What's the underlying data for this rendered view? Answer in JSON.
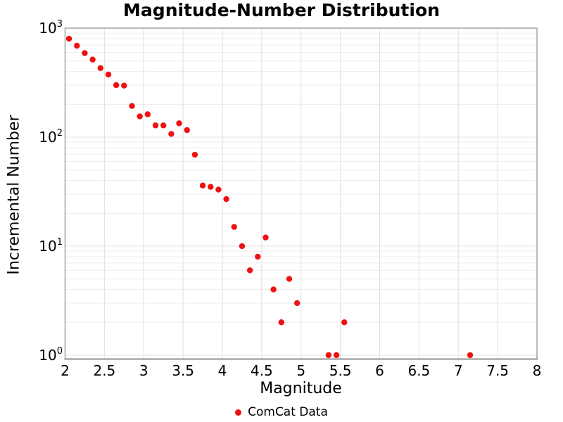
{
  "title": "Magnitude-Number Distribution",
  "axes": {
    "x_label": "Magnitude",
    "y_label": "Incremental Number",
    "x_tick_values": [
      2,
      2.5,
      3,
      3.5,
      4,
      4.5,
      5,
      5.5,
      6,
      6.5,
      7,
      7.5,
      8
    ],
    "x_tick_labels": [
      "2",
      "2.5",
      "3",
      "3.5",
      "4",
      "4.5",
      "5",
      "5.5",
      "6",
      "6.5",
      "7",
      "7.5",
      "8"
    ],
    "y_tick_base": "10",
    "y_tick_exponents": [
      0,
      1,
      2,
      3
    ]
  },
  "legend": {
    "items": [
      {
        "label": "ComCat Data",
        "marker": "circle-icon",
        "color": "#ee1111"
      }
    ]
  },
  "colors": {
    "marker": "#ee1111",
    "grid_minor": "#ececec",
    "grid_major": "#e0e0e0",
    "spine": "#a8a8a8",
    "axis_line": "#8f8f8f",
    "text": "#000000",
    "background": "#ffffff"
  },
  "chart_data": {
    "type": "scatter",
    "title": "Magnitude-Number Distribution",
    "xlabel": "Magnitude",
    "ylabel": "Incremental Number",
    "x_scale": "linear",
    "y_scale": "log",
    "xlim": [
      2,
      8
    ],
    "ylim": [
      0.92,
      1000
    ],
    "grid": true,
    "legend_position": "bottom-center",
    "series": [
      {
        "name": "ComCat Data",
        "color": "#ee1111",
        "marker": "circle",
        "x": [
          2.05,
          2.15,
          2.25,
          2.35,
          2.45,
          2.55,
          2.65,
          2.75,
          2.85,
          2.95,
          3.05,
          3.15,
          3.25,
          3.35,
          3.45,
          3.55,
          3.65,
          3.75,
          3.85,
          3.95,
          4.05,
          4.15,
          4.25,
          4.35,
          4.45,
          4.55,
          4.65,
          4.75,
          4.85,
          4.95,
          5.35,
          5.45,
          5.55,
          7.15
        ],
        "y": [
          800,
          690,
          590,
          515,
          430,
          375,
          300,
          297,
          193,
          155,
          162,
          128,
          128,
          107,
          134,
          116,
          69,
          36,
          35,
          33,
          27,
          15,
          10,
          6,
          8,
          12,
          4,
          2,
          5,
          3,
          1,
          1,
          2,
          1
        ]
      }
    ]
  }
}
